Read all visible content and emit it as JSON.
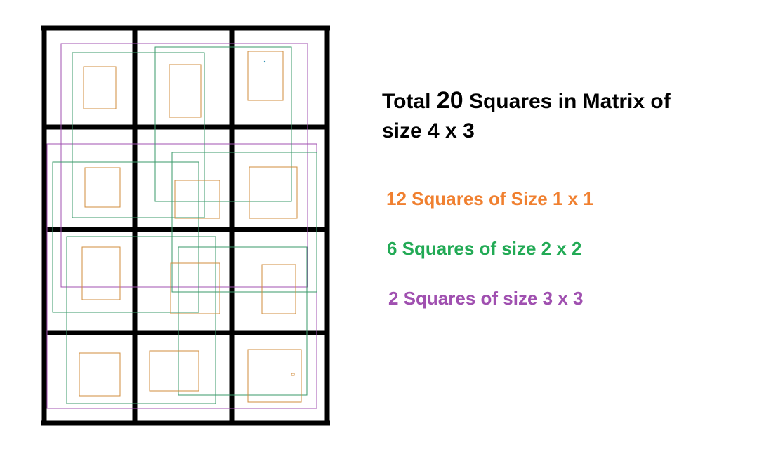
{
  "title": {
    "prefix": "Total",
    "count": "20",
    "line1_rest": "Squares in Matrix of",
    "line2": "size 4 x 3"
  },
  "legend": [
    {
      "text": "12 Squares of Size 1 x 1",
      "color": "#f08030"
    },
    {
      "text": "6 Squares of size 2 x 2",
      "color": "#22aa55"
    },
    {
      "text": "2 Squares of size 3 x 3",
      "color": "#a050b0"
    }
  ],
  "colors": {
    "grid": "#000000",
    "size1": "#d08c3c",
    "size2": "#3a9a6a",
    "size3": "#a050b0"
  }
}
